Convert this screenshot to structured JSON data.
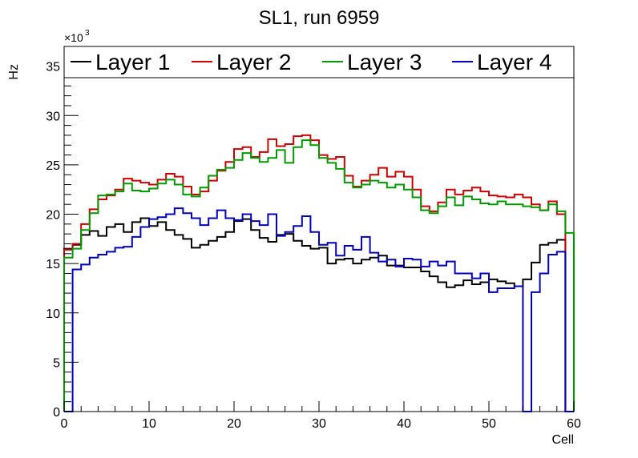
{
  "chart_data": {
    "type": "line",
    "step": true,
    "title": "SL1, run 6959",
    "xlabel": "Cell",
    "ylabel": "Hz",
    "y_multiplier_label": "×10",
    "y_multiplier_exponent": "3",
    "xlim": [
      0,
      60
    ],
    "ylim": [
      0,
      37
    ],
    "x_ticks": [
      0,
      10,
      20,
      30,
      40,
      50,
      60
    ],
    "x_tick_labels": [
      "0",
      "10",
      "20",
      "30",
      "40",
      "50",
      "60"
    ],
    "y_ticks": [
      0,
      5,
      10,
      15,
      20,
      25,
      30,
      35
    ],
    "y_tick_labels": [
      "0",
      "5",
      "10",
      "15",
      "20",
      "25",
      "30",
      "35"
    ],
    "grid": false,
    "legend_position": "top",
    "bin_edges": [
      0,
      1,
      2,
      3,
      4,
      5,
      6,
      7,
      8,
      9,
      10,
      11,
      12,
      13,
      14,
      15,
      16,
      17,
      18,
      19,
      20,
      21,
      22,
      23,
      24,
      25,
      26,
      27,
      28,
      29,
      30,
      31,
      32,
      33,
      34,
      35,
      36,
      37,
      38,
      39,
      40,
      41,
      42,
      43,
      44,
      45,
      46,
      47,
      48,
      49,
      50,
      51,
      52,
      53,
      54,
      55,
      56,
      57,
      58,
      59,
      60
    ],
    "series": [
      {
        "name": "Layer 1",
        "color": "#000000",
        "values": [
          16.5,
          16.9,
          17.9,
          18.3,
          17.8,
          18.7,
          19.0,
          18.2,
          19.2,
          19.6,
          18.8,
          19.2,
          18.4,
          17.9,
          17.5,
          16.6,
          16.9,
          17.3,
          17.7,
          18.2,
          19.3,
          19.5,
          18.4,
          17.6,
          17.2,
          17.9,
          18.0,
          17.3,
          16.8,
          16.5,
          16.6,
          15.0,
          15.4,
          15.5,
          15.0,
          15.4,
          15.6,
          15.8,
          14.8,
          14.8,
          14.6,
          14.6,
          14.2,
          13.7,
          13.1,
          12.6,
          12.8,
          13.3,
          12.9,
          13.1,
          13.4,
          13.2,
          13.0,
          12.7,
          13.4,
          15.1,
          16.9,
          17.1,
          17.4,
          0
        ]
      },
      {
        "name": "Layer 2",
        "color": "#cc0000",
        "values": [
          16.4,
          17.0,
          19.0,
          20.5,
          21.5,
          21.9,
          22.5,
          23.6,
          23.4,
          23.2,
          23.0,
          23.5,
          24.1,
          23.8,
          22.8,
          22.0,
          22.3,
          23.4,
          24.4,
          25.3,
          26.6,
          26.8,
          25.8,
          26.3,
          27.6,
          26.9,
          27.1,
          27.9,
          28.0,
          27.5,
          26.0,
          25.6,
          25.8,
          23.9,
          22.8,
          23.4,
          24.0,
          24.7,
          23.8,
          24.3,
          23.8,
          22.5,
          20.8,
          20.3,
          21.2,
          22.5,
          22.0,
          22.4,
          22.7,
          22.3,
          21.9,
          21.8,
          21.7,
          22.0,
          21.7,
          21.0,
          20.4,
          21.3,
          20.0,
          0
        ]
      },
      {
        "name": "Layer 3",
        "color": "#009900",
        "values": [
          15.6,
          16.5,
          18.4,
          20.1,
          21.9,
          22.0,
          22.3,
          23.1,
          22.4,
          22.3,
          22.6,
          23.1,
          23.5,
          23.0,
          22.0,
          21.8,
          22.7,
          23.9,
          24.5,
          24.7,
          25.5,
          26.2,
          25.7,
          25.3,
          25.7,
          26.5,
          25.2,
          26.8,
          27.5,
          27.0,
          25.7,
          25.2,
          24.6,
          23.2,
          22.7,
          23.0,
          23.4,
          23.2,
          22.7,
          23.0,
          22.5,
          21.7,
          20.4,
          20.1,
          20.8,
          21.7,
          20.9,
          21.8,
          21.5,
          21.1,
          21.0,
          21.3,
          21.0,
          21.0,
          20.8,
          20.7,
          20.4,
          21.0,
          20.3,
          18.1
        ]
      },
      {
        "name": "Layer 4",
        "color": "#0000bb",
        "values": [
          0,
          14.4,
          14.9,
          15.6,
          15.9,
          16.2,
          16.6,
          16.7,
          17.7,
          18.7,
          19.5,
          19.7,
          20.0,
          20.6,
          20.1,
          19.6,
          18.9,
          19.6,
          20.4,
          19.6,
          19.4,
          20.0,
          19.3,
          18.9,
          20.0,
          17.8,
          18.2,
          18.8,
          19.8,
          18.2,
          16.9,
          17.1,
          15.8,
          16.8,
          16.4,
          17.7,
          16.1,
          15.2,
          15.4,
          14.7,
          15.5,
          15.4,
          14.7,
          15.2,
          14.8,
          15.2,
          14.0,
          14.0,
          13.5,
          14.0,
          12.1,
          12.5,
          12.5,
          12.7,
          0,
          12.1,
          14.0,
          15.9,
          16.2,
          0
        ]
      }
    ]
  }
}
